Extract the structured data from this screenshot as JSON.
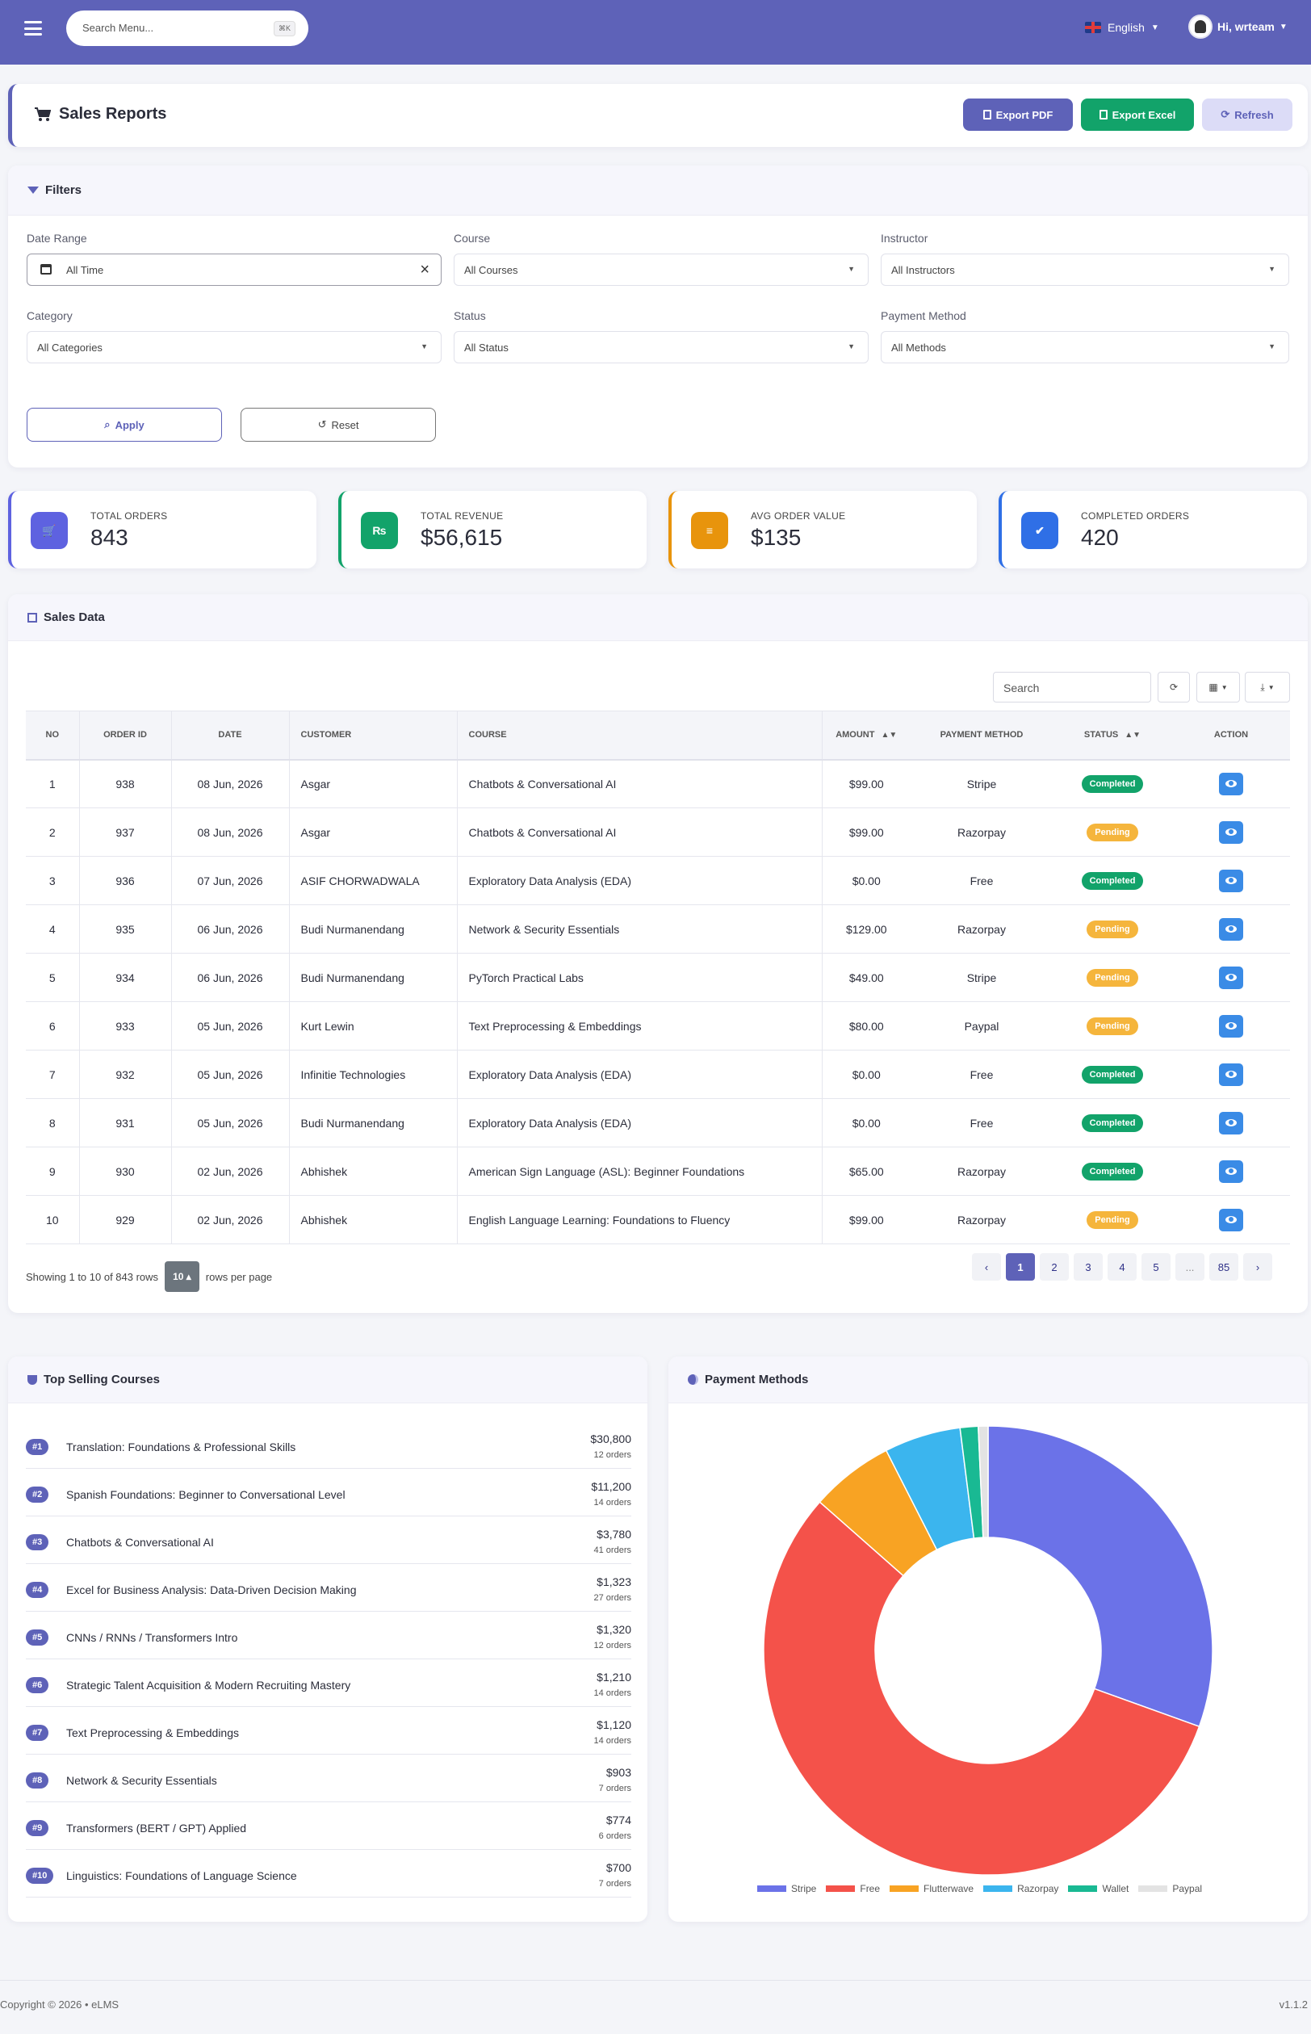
{
  "topbar": {
    "search_placeholder": "Search Menu...",
    "search_shortcut": "⌘K",
    "language": "English",
    "user_greeting": "Hi, wrteam"
  },
  "header": {
    "title": "Sales Reports",
    "export_pdf": "Export PDF",
    "export_excel": "Export Excel",
    "refresh": "Refresh"
  },
  "filters": {
    "title": "Filters",
    "date_range_label": "Date Range",
    "date_range_value": "All Time",
    "course_label": "Course",
    "course_value": "All Courses",
    "instructor_label": "Instructor",
    "instructor_value": "All Instructors",
    "category_label": "Category",
    "category_value": "All Categories",
    "status_label": "Status",
    "status_value": "All Status",
    "payment_label": "Payment Method",
    "payment_value": "All Methods",
    "apply": "Apply",
    "reset": "Reset"
  },
  "stats": [
    {
      "label": "TOTAL ORDERS",
      "value": "843",
      "color": "#5e62e0",
      "icon": "cart-icon",
      "glyph": "🛒"
    },
    {
      "label": "TOTAL REVENUE",
      "value": "$56,615",
      "color": "#12a36a",
      "icon": "rupee-icon",
      "glyph": "₨"
    },
    {
      "label": "AVG ORDER VALUE",
      "value": "$135",
      "color": "#e8940c",
      "icon": "chart-icon",
      "glyph": "≡"
    },
    {
      "label": "COMPLETED ORDERS",
      "value": "420",
      "color": "#2f6fe6",
      "icon": "check-circle-icon",
      "glyph": "✔"
    }
  ],
  "sales": {
    "title": "Sales Data",
    "search_placeholder": "Search",
    "columns": [
      "NO",
      "ORDER ID",
      "DATE",
      "CUSTOMER",
      "COURSE",
      "AMOUNT",
      "PAYMENT METHOD",
      "STATUS",
      "ACTION"
    ],
    "rows": [
      {
        "no": "1",
        "order_id": "938",
        "date": "08 Jun, 2026",
        "customer": "Asgar",
        "course": "Chatbots & Conversational AI",
        "amount": "$99.00",
        "method": "Stripe",
        "status": "Completed"
      },
      {
        "no": "2",
        "order_id": "937",
        "date": "08 Jun, 2026",
        "customer": "Asgar",
        "course": "Chatbots & Conversational AI",
        "amount": "$99.00",
        "method": "Razorpay",
        "status": "Pending"
      },
      {
        "no": "3",
        "order_id": "936",
        "date": "07 Jun, 2026",
        "customer": "ASIF CHORWADWALA",
        "course": "Exploratory Data Analysis (EDA)",
        "amount": "$0.00",
        "method": "Free",
        "status": "Completed"
      },
      {
        "no": "4",
        "order_id": "935",
        "date": "06 Jun, 2026",
        "customer": "Budi Nurmanendang",
        "course": "Network & Security Essentials",
        "amount": "$129.00",
        "method": "Razorpay",
        "status": "Pending"
      },
      {
        "no": "5",
        "order_id": "934",
        "date": "06 Jun, 2026",
        "customer": "Budi Nurmanendang",
        "course": "PyTorch Practical Labs",
        "amount": "$49.00",
        "method": "Stripe",
        "status": "Pending"
      },
      {
        "no": "6",
        "order_id": "933",
        "date": "05 Jun, 2026",
        "customer": "Kurt Lewin",
        "course": "Text Preprocessing & Embeddings",
        "amount": "$80.00",
        "method": "Paypal",
        "status": "Pending"
      },
      {
        "no": "7",
        "order_id": "932",
        "date": "05 Jun, 2026",
        "customer": "Infinitie Technologies",
        "course": "Exploratory Data Analysis (EDA)",
        "amount": "$0.00",
        "method": "Free",
        "status": "Completed"
      },
      {
        "no": "8",
        "order_id": "931",
        "date": "05 Jun, 2026",
        "customer": "Budi Nurmanendang",
        "course": "Exploratory Data Analysis (EDA)",
        "amount": "$0.00",
        "method": "Free",
        "status": "Completed"
      },
      {
        "no": "9",
        "order_id": "930",
        "date": "02 Jun, 2026",
        "customer": "Abhishek",
        "course": "American Sign Language (ASL): Beginner Foundations",
        "amount": "$65.00",
        "method": "Razorpay",
        "status": "Completed"
      },
      {
        "no": "10",
        "order_id": "929",
        "date": "02 Jun, 2026",
        "customer": "Abhishek",
        "course": "English Language Learning: Foundations to Fluency",
        "amount": "$99.00",
        "method": "Razorpay",
        "status": "Pending"
      }
    ],
    "showing": "Showing 1 to 10 of 843 rows",
    "per_page": "10",
    "per_page_suffix": "rows per page",
    "pages": [
      "‹",
      "1",
      "2",
      "3",
      "4",
      "5",
      "...",
      "85",
      "›"
    ],
    "active_page": "1"
  },
  "top_selling": {
    "title": "Top Selling Courses",
    "items": [
      {
        "rank": "#1",
        "name": "Translation: Foundations & Professional Skills",
        "amount": "$30,800",
        "orders": "12 orders"
      },
      {
        "rank": "#2",
        "name": "Spanish Foundations: Beginner to Conversational Level",
        "amount": "$11,200",
        "orders": "14 orders"
      },
      {
        "rank": "#3",
        "name": "Chatbots & Conversational AI",
        "amount": "$3,780",
        "orders": "41 orders"
      },
      {
        "rank": "#4",
        "name": "Excel for Business Analysis: Data-Driven Decision Making",
        "amount": "$1,323",
        "orders": "27 orders"
      },
      {
        "rank": "#5",
        "name": "CNNs / RNNs / Transformers Intro",
        "amount": "$1,320",
        "orders": "12 orders"
      },
      {
        "rank": "#6",
        "name": "Strategic Talent Acquisition & Modern Recruiting Mastery",
        "amount": "$1,210",
        "orders": "14 orders"
      },
      {
        "rank": "#7",
        "name": "Text Preprocessing & Embeddings",
        "amount": "$1,120",
        "orders": "14 orders"
      },
      {
        "rank": "#8",
        "name": "Network & Security Essentials",
        "amount": "$903",
        "orders": "7 orders"
      },
      {
        "rank": "#9",
        "name": "Transformers (BERT / GPT) Applied",
        "amount": "$774",
        "orders": "6 orders"
      },
      {
        "rank": "#10",
        "name": "Linguistics: Foundations of Language Science",
        "amount": "$700",
        "orders": "7 orders"
      }
    ]
  },
  "payment_methods": {
    "title": "Payment Methods"
  },
  "chart_data": {
    "type": "pie",
    "categories": [
      "Stripe",
      "Free",
      "Flutterwave",
      "Razorpay",
      "Wallet",
      "Paypal"
    ],
    "values": [
      30.5,
      56.0,
      6.0,
      5.5,
      1.3,
      0.7
    ],
    "colors": [
      "#6b72e8",
      "#f4524a",
      "#f8a323",
      "#3bb5ee",
      "#19b993",
      "#e3e3e3"
    ],
    "legend": "bottom"
  },
  "footer": {
    "copyright": "Copyright © 2026 • eLMS",
    "version": "v1.1.2"
  }
}
